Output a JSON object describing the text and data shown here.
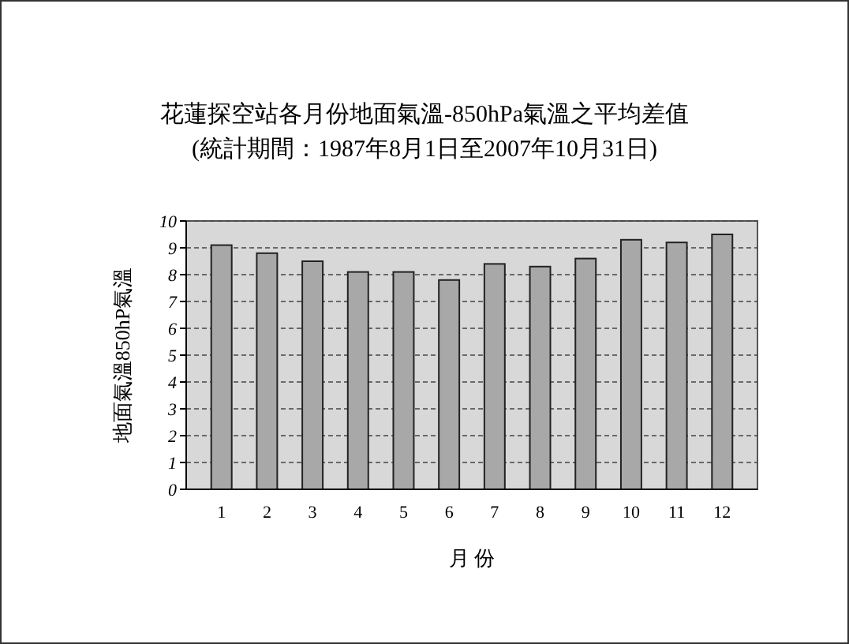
{
  "chart_data": {
    "type": "bar",
    "title": "花蓮探空站各月份地面氣溫-850hPa氣溫之平均差值",
    "subtitle": "(統計期間：1987年8月1日至2007年10月31日)",
    "xlabel": "月 份",
    "ylabel": "地面氣溫850hP氣溫",
    "categories": [
      "1",
      "2",
      "3",
      "4",
      "5",
      "6",
      "7",
      "8",
      "9",
      "10",
      "11",
      "12"
    ],
    "values": [
      9.1,
      8.8,
      8.5,
      8.1,
      8.1,
      7.8,
      8.4,
      8.3,
      8.6,
      9.3,
      9.2,
      9.5
    ],
    "color": "#a8a8a8",
    "ylim": [
      0,
      10
    ],
    "yticks": [
      0,
      1,
      2,
      3,
      4,
      5,
      6,
      7,
      8,
      9,
      10
    ],
    "grid": "y"
  }
}
